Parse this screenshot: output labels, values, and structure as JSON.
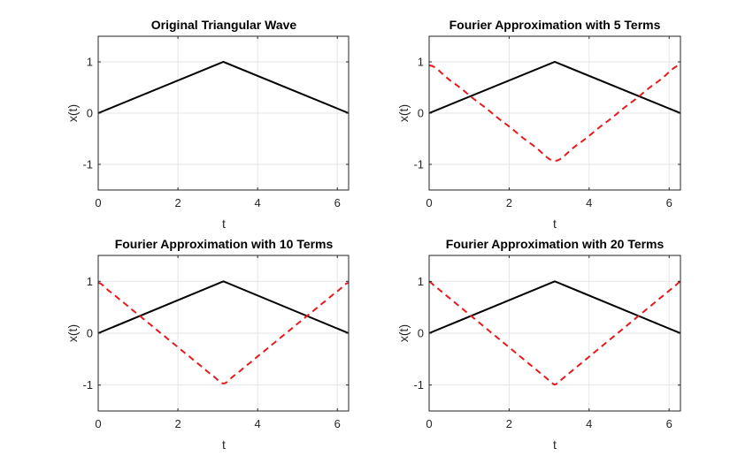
{
  "figure": {
    "background": "#ffffff"
  },
  "chart_data": [
    {
      "type": "line",
      "title": "Original Triangular Wave",
      "xlabel": "t",
      "ylabel": "x(t)",
      "xlim": [
        0,
        6.2832
      ],
      "ylim": [
        -1.5,
        1.5
      ],
      "xticks": [
        0,
        2,
        4,
        6
      ],
      "yticks": [
        -1,
        0,
        1
      ],
      "xtick_labels": [
        "0",
        "2",
        "4",
        "6"
      ],
      "ytick_labels": [
        "-1",
        "0",
        "1"
      ],
      "grid": true,
      "series": [
        {
          "style": "solid",
          "color": "#000000",
          "x": [
            0,
            3.1416,
            6.2832
          ],
          "y": [
            0,
            1,
            0
          ]
        }
      ]
    },
    {
      "type": "line",
      "title": "Fourier Approximation with 5 Terms",
      "xlabel": "t",
      "ylabel": "x(t)",
      "xlim": [
        0,
        6.2832
      ],
      "ylim": [
        -1.5,
        1.5
      ],
      "xticks": [
        0,
        2,
        4,
        6
      ],
      "yticks": [
        -1,
        0,
        1
      ],
      "xtick_labels": [
        "0",
        "2",
        "4",
        "6"
      ],
      "ytick_labels": [
        "-1",
        "0",
        "1"
      ],
      "grid": true,
      "series": [
        {
          "style": "solid",
          "color": "#000000",
          "x": [
            0,
            3.1416,
            6.2832
          ],
          "y": [
            0,
            1,
            0
          ]
        },
        {
          "style": "dashed",
          "color": "#e41a1c",
          "terms": 5,
          "x_range": [
            0,
            6.2832
          ],
          "y_at_0": 0.93,
          "y_at_pi": -0.93
        }
      ]
    },
    {
      "type": "line",
      "title": "Fourier Approximation with 10 Terms",
      "xlabel": "t",
      "ylabel": "x(t)",
      "xlim": [
        0,
        6.2832
      ],
      "ylim": [
        -1.5,
        1.5
      ],
      "xticks": [
        0,
        2,
        4,
        6
      ],
      "yticks": [
        -1,
        0,
        1
      ],
      "xtick_labels": [
        "0",
        "2",
        "4",
        "6"
      ],
      "ytick_labels": [
        "-1",
        "0",
        "1"
      ],
      "grid": true,
      "series": [
        {
          "style": "solid",
          "color": "#000000",
          "x": [
            0,
            3.1416,
            6.2832
          ],
          "y": [
            0,
            1,
            0
          ]
        },
        {
          "style": "dashed",
          "color": "#e41a1c",
          "terms": 10,
          "x_range": [
            0,
            6.2832
          ],
          "y_at_0": 0.97,
          "y_at_pi": -0.97
        }
      ]
    },
    {
      "type": "line",
      "title": "Fourier Approximation with 20 Terms",
      "xlabel": "t",
      "ylabel": "x(t)",
      "xlim": [
        0,
        6.2832
      ],
      "ylim": [
        -1.5,
        1.5
      ],
      "xticks": [
        0,
        2,
        4,
        6
      ],
      "yticks": [
        -1,
        0,
        1
      ],
      "xtick_labels": [
        "0",
        "2",
        "4",
        "6"
      ],
      "ytick_labels": [
        "-1",
        "0",
        "1"
      ],
      "grid": true,
      "series": [
        {
          "style": "solid",
          "color": "#000000",
          "x": [
            0,
            3.1416,
            6.2832
          ],
          "y": [
            0,
            1,
            0
          ]
        },
        {
          "style": "dashed",
          "color": "#e41a1c",
          "terms": 20,
          "x_range": [
            0,
            6.2832
          ],
          "y_at_0": 0.99,
          "y_at_pi": -0.99
        }
      ]
    }
  ]
}
